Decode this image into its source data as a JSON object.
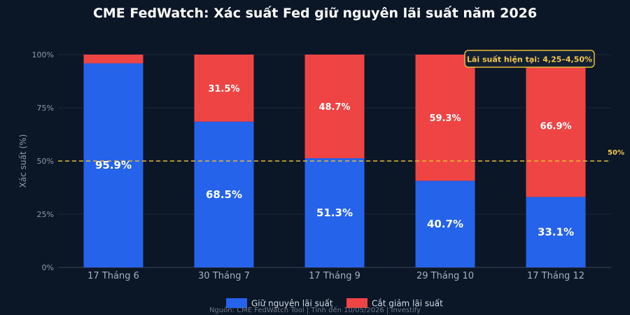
{
  "chart_data": {
    "type": "bar",
    "stacked": true,
    "title": "CME FedWatch: Xác suất Fed giữ nguyên lãi suất năm 2026",
    "ylabel": "Xác suất (%)",
    "xlabel": "",
    "ylim": [
      0,
      100
    ],
    "yticks": [
      "0%",
      "25%",
      "50%",
      "75%",
      "100%"
    ],
    "ytick_values": [
      0,
      25,
      50,
      75,
      100
    ],
    "grid": true,
    "categories": [
      "17 Tháng 6",
      "30 Tháng 7",
      "17 Tháng 9",
      "29 Tháng 10",
      "17 Tháng 12"
    ],
    "series": [
      {
        "name": "Giữ nguyên lãi suất",
        "color": "#2563eb",
        "values": [
          95.9,
          68.5,
          51.3,
          40.7,
          33.1
        ],
        "labels": [
          "95.9%",
          "68.5%",
          "51.3%",
          "40.7%",
          "33.1%"
        ]
      },
      {
        "name": "Cắt giảm lãi suất",
        "color": "#ef4444",
        "values": [
          4.1,
          31.5,
          48.7,
          59.3,
          66.9
        ],
        "labels": [
          "",
          "31.5%",
          "48.7%",
          "59.3%",
          "66.9%"
        ]
      }
    ],
    "reference_line": {
      "value": 50,
      "label": "50%",
      "color": "#e6b93a"
    },
    "annotation": {
      "text": "Lãi suất hiện tại: 4,25–4,50%",
      "color": "#f2c94c"
    },
    "legend_position": "bottom-center",
    "source": "Nguồn: CME FedWatch Tool  |  Tính đến 10/05/2026  |  Investify"
  }
}
